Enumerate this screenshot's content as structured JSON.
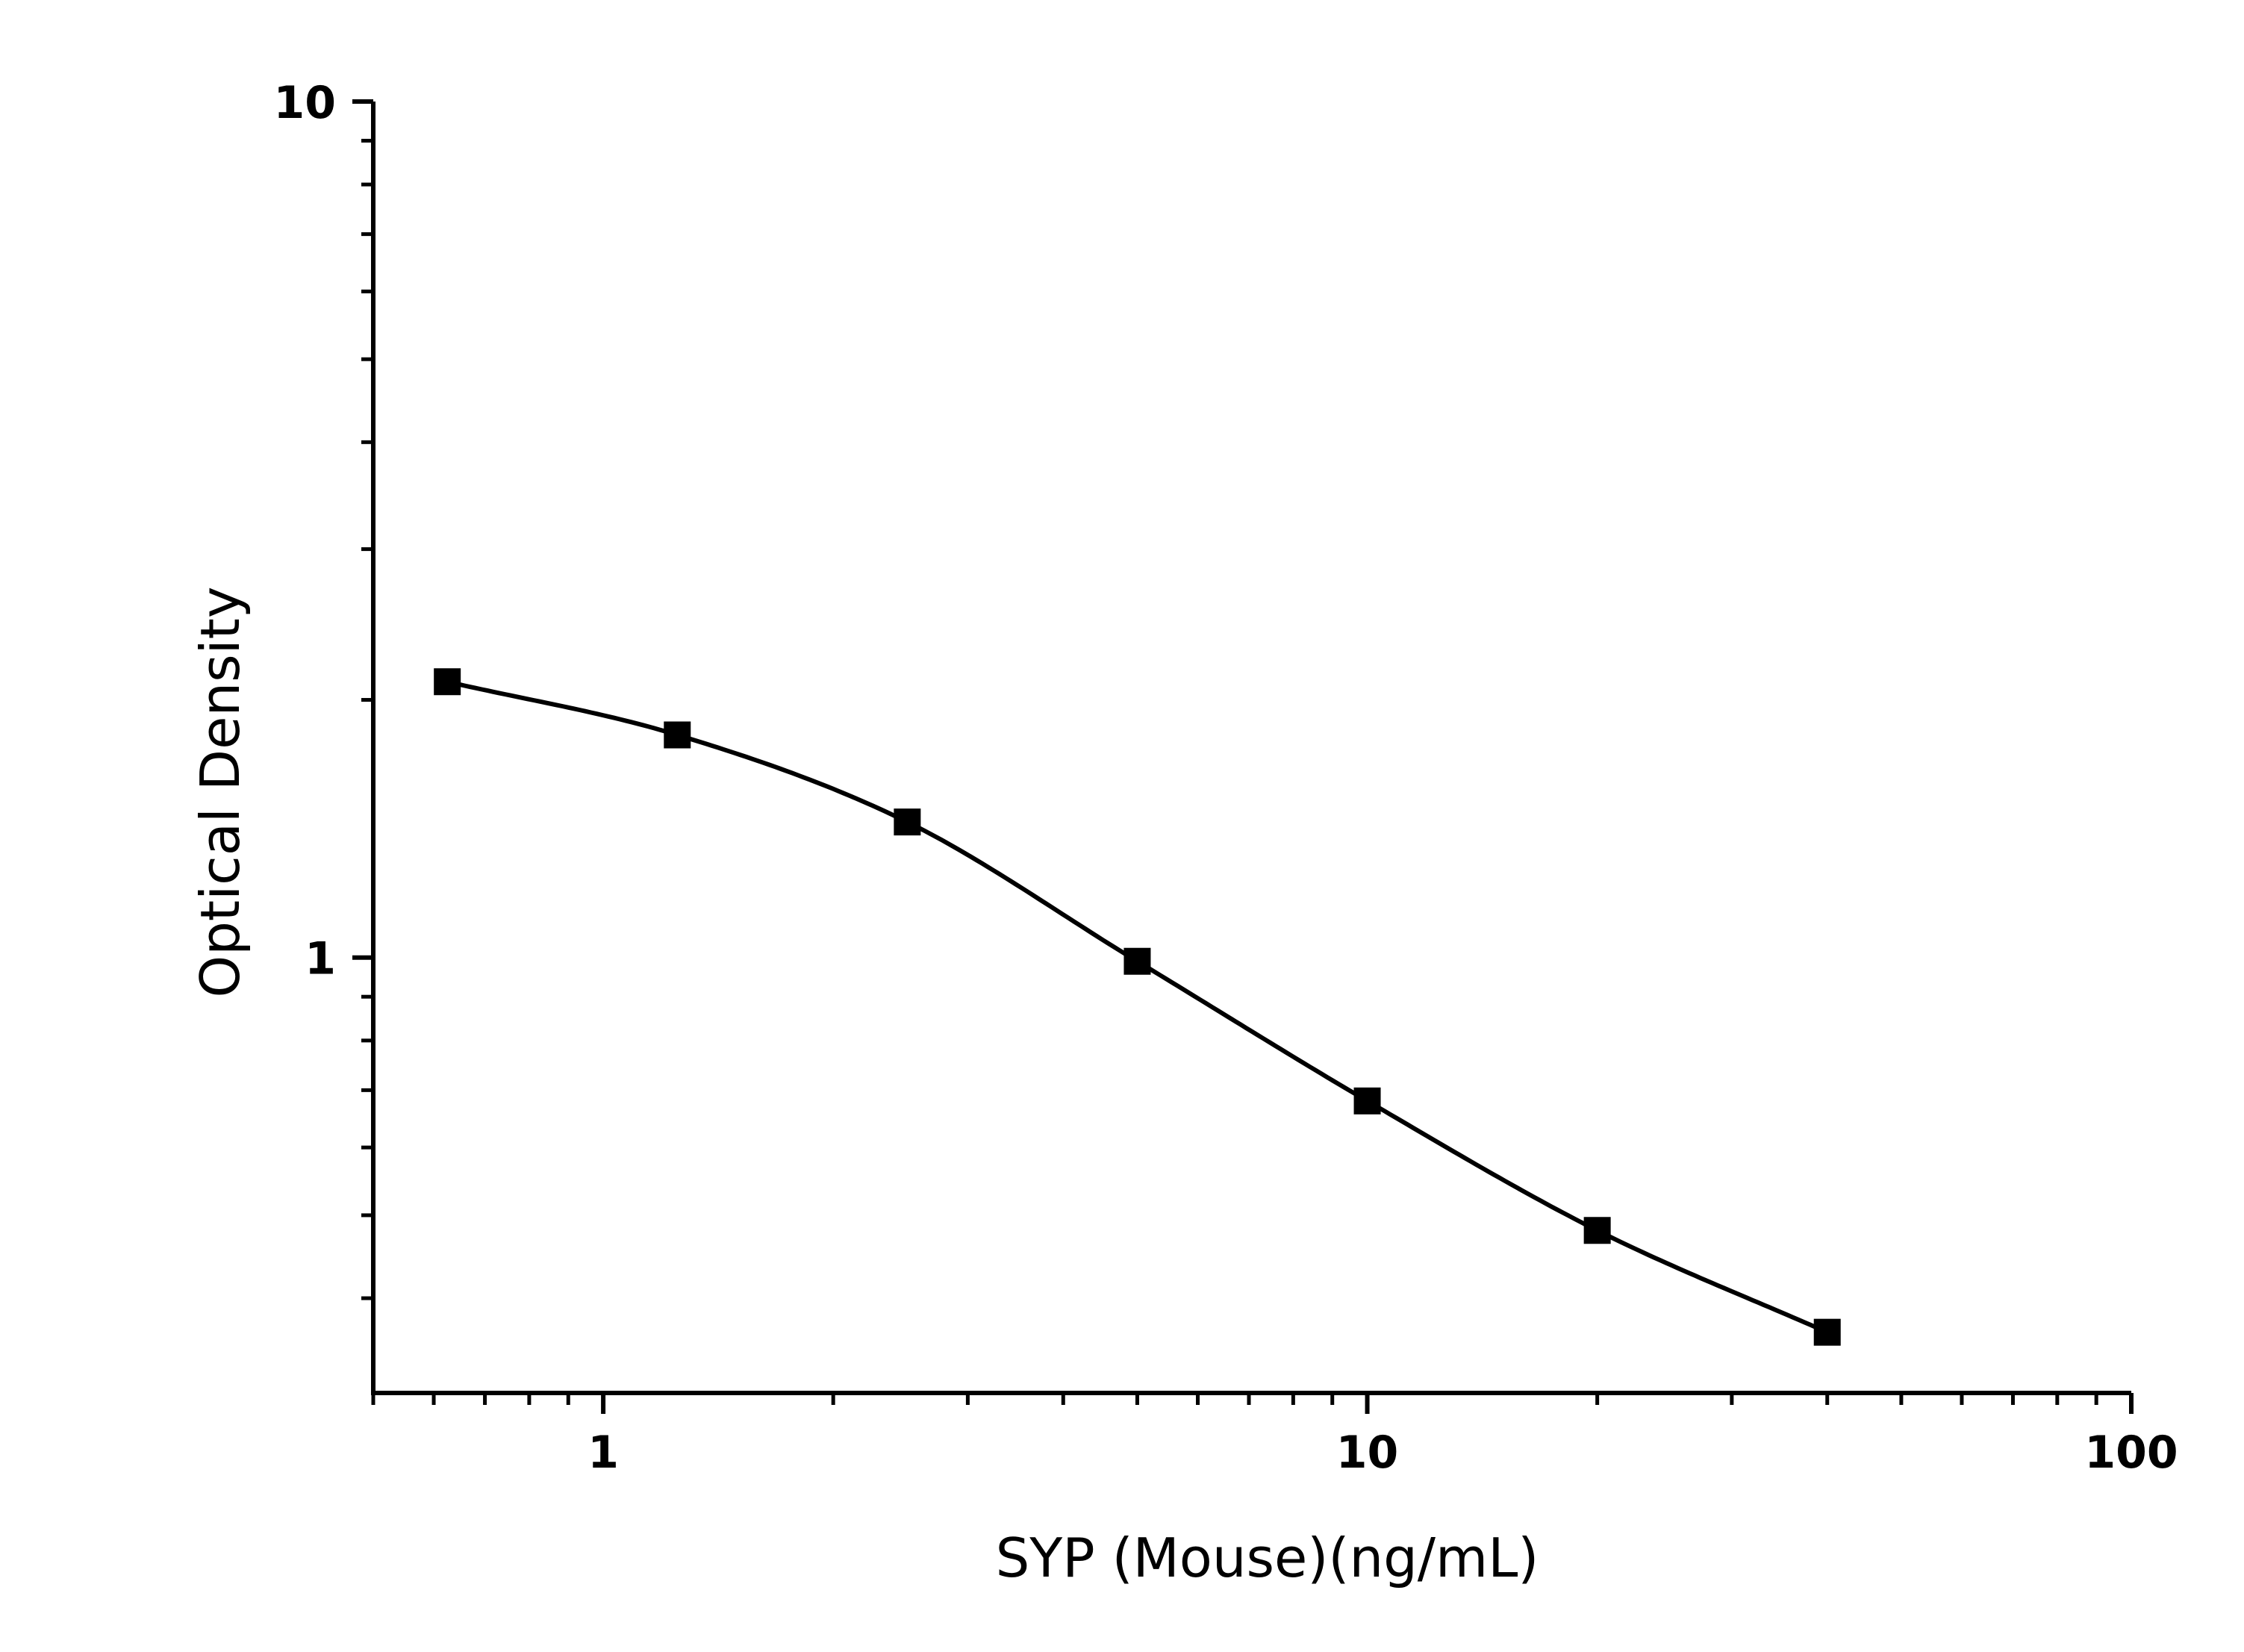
{
  "chart_data": {
    "type": "scatter",
    "xlabel": "SYP (Mouse)(ng/mL)",
    "ylabel": "Optical Density",
    "x_scale": "log",
    "y_scale": "log",
    "xlim": [
      0.5,
      100
    ],
    "ylim": [
      0.31,
      10
    ],
    "x_ticks": [
      {
        "value": 1,
        "label": "1"
      },
      {
        "value": 10,
        "label": "10"
      },
      {
        "value": 100,
        "label": "100"
      }
    ],
    "y_ticks": [
      {
        "value": 1,
        "label": "1"
      },
      {
        "value": 10,
        "label": "10"
      }
    ],
    "grid": false,
    "legend": "none",
    "series": [
      {
        "marker": "square",
        "line": "smooth fitted curve",
        "color": "#000000",
        "points": [
          {
            "x": 0.625,
            "y": 2.1
          },
          {
            "x": 1.25,
            "y": 1.82
          },
          {
            "x": 2.5,
            "y": 1.44
          },
          {
            "x": 5,
            "y": 0.99
          },
          {
            "x": 10,
            "y": 0.68
          },
          {
            "x": 20,
            "y": 0.48
          },
          {
            "x": 40,
            "y": 0.365
          }
        ]
      }
    ]
  }
}
